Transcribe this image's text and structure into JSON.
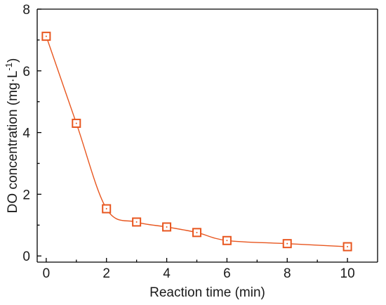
{
  "colors": {
    "series": "#E8561F",
    "axis": "#000000",
    "text": "#1a1a1a"
  },
  "chart_data": {
    "type": "line",
    "title": "",
    "xlabel": "Reaction time (min)",
    "ylabel_main": "DO concentration (mg·L",
    "ylabel_sup": "-1",
    "ylabel_tail": ")",
    "xlim": [
      -0.3,
      11
    ],
    "ylim": [
      -0.2,
      8
    ],
    "xticks": [
      0,
      2,
      4,
      6,
      8,
      10
    ],
    "yticks": [
      0,
      2,
      4,
      6,
      8
    ],
    "xtick_labels": [
      "0",
      "2",
      "4",
      "6",
      "8",
      "10"
    ],
    "ytick_labels": [
      "0",
      "2",
      "4",
      "6",
      "8"
    ],
    "grid": false,
    "legend": false,
    "marker": "open-square",
    "series": [
      {
        "x": [
          0,
          1,
          2,
          3,
          4,
          5,
          6,
          8,
          10
        ],
        "y": [
          7.12,
          4.3,
          1.53,
          1.1,
          0.94,
          0.76,
          0.5,
          0.4,
          0.3
        ]
      }
    ]
  }
}
